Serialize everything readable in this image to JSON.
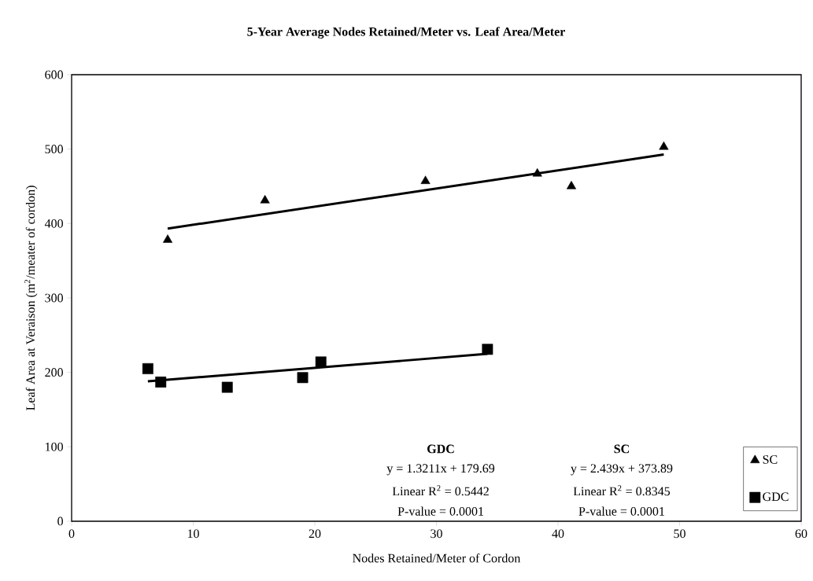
{
  "chart_data": {
    "type": "scatter",
    "title": "5-Year Average Nodes Retained/Meter vs. Leaf Area/Meter",
    "xlabel": "Nodes Retained/Meter of Cordon",
    "ylabel": "Leaf Area at Veraison (m$^{2}$/meater of cordon)",
    "xlim": [
      0,
      60
    ],
    "ylim": [
      0,
      600
    ],
    "xticks": [
      0,
      10,
      20,
      30,
      40,
      50,
      60
    ],
    "yticks": [
      0,
      100,
      200,
      300,
      400,
      500,
      600
    ],
    "grid": false,
    "legend": "bottom right",
    "series": [
      {
        "name": "SC",
        "color": "#000000",
        "marker": "triangle",
        "x": [
          7.9,
          15.9,
          29.1,
          38.3,
          41.1,
          48.7
        ],
        "values": [
          378,
          431,
          457,
          467,
          450,
          503
        ]
      },
      {
        "name": "GDC",
        "color": "#000000",
        "marker": "square",
        "x": [
          6.27,
          7.33,
          12.8,
          19.0,
          20.5,
          34.2
        ],
        "values": [
          205,
          187,
          180,
          193,
          214,
          231
        ]
      },
      {
        "type": "line",
        "color": "#000000",
        "marker": "none",
        "x": [
          7.9,
          48.7
        ],
        "values": [
          393.2,
          492.7
        ]
      },
      {
        "type": "line",
        "color": "#000000",
        "marker": "none",
        "x": [
          6.27,
          34.2
        ],
        "values": [
          188.0,
          224.9
        ]
      }
    ],
    "annotations": [
      "GDC",
      "y = 1.3211x + 179.69",
      "Linear R$^{2}$ = 0.5442",
      "P-value = 0.0001",
      "SC",
      "y = 2.439x + 373.89",
      "Linear R$^{2}$ = 0.8345",
      "P-value = 0.0001"
    ]
  }
}
